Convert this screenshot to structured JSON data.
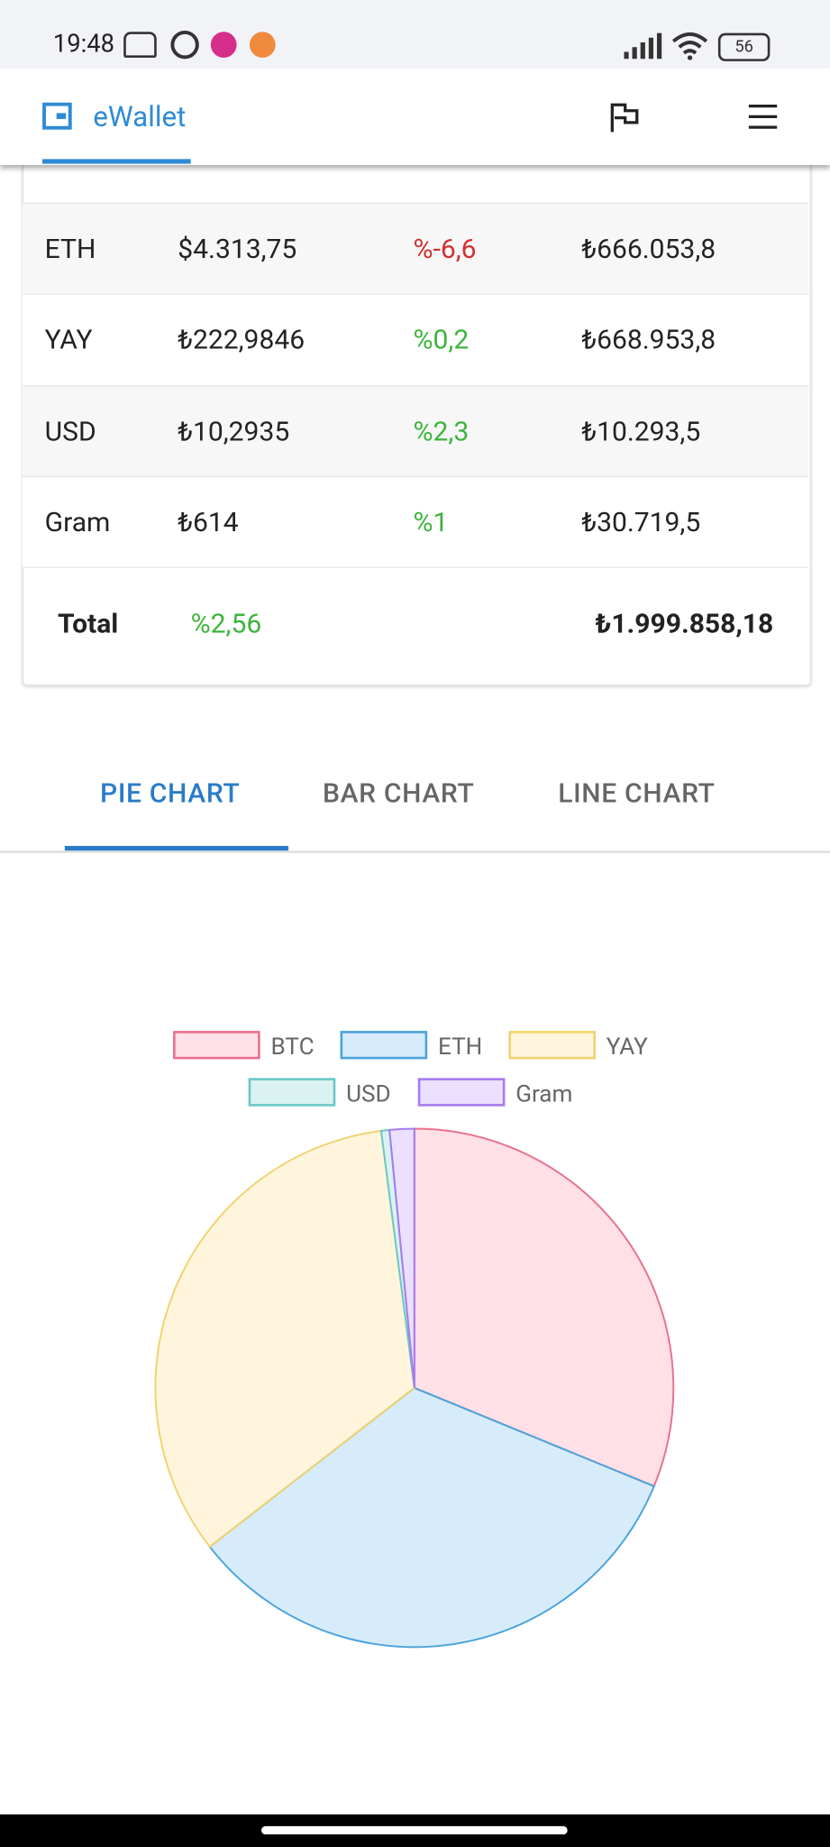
{
  "status_bar": {
    "time": "19:48",
    "battery": "56"
  },
  "app_bar": {
    "title": "eWallet"
  },
  "table": {
    "rows": [
      {
        "cells": [
          "ETH",
          "$4.313,75",
          "%-6,6",
          "₺666.053,8"
        ],
        "change_color": "#d32f2f"
      },
      {
        "cells": [
          "YAY",
          "₺222,9846",
          "%0,2",
          "₺668.953,8"
        ],
        "change_color": "#3cb43c"
      },
      {
        "cells": [
          "USD",
          "₺10,2935",
          "%2,3",
          "₺10.293,5"
        ],
        "change_color": "#3cb43c"
      },
      {
        "cells": [
          "Gram",
          "₺614",
          "%1",
          "₺30.719,5"
        ],
        "change_color": "#3cb43c"
      }
    ],
    "total": {
      "label": "Total",
      "change": "%2,56",
      "amount": "₺1.999.858,18",
      "change_color": "#3cb43c"
    }
  },
  "tabs": [
    "PIE CHART",
    "BAR CHART",
    "LINE CHART"
  ],
  "chart_data": {
    "type": "pie",
    "categories": [
      "BTC",
      "ETH",
      "YAY",
      "USD",
      "Gram"
    ],
    "values": [
      623838,
      666053.8,
      668953.8,
      10293.5,
      30719.5
    ],
    "colors": [
      "rgba(255,99,132,0.2)",
      "rgba(54,162,235,0.2)",
      "rgba(255,206,86,0.2)",
      "rgba(75,192,192,0.2)",
      "rgba(153,102,255,0.2)"
    ],
    "border_colors": [
      "#e8728e",
      "#4aa3dc",
      "#f2d270",
      "#6cc7c7",
      "#a57cf0"
    ]
  }
}
